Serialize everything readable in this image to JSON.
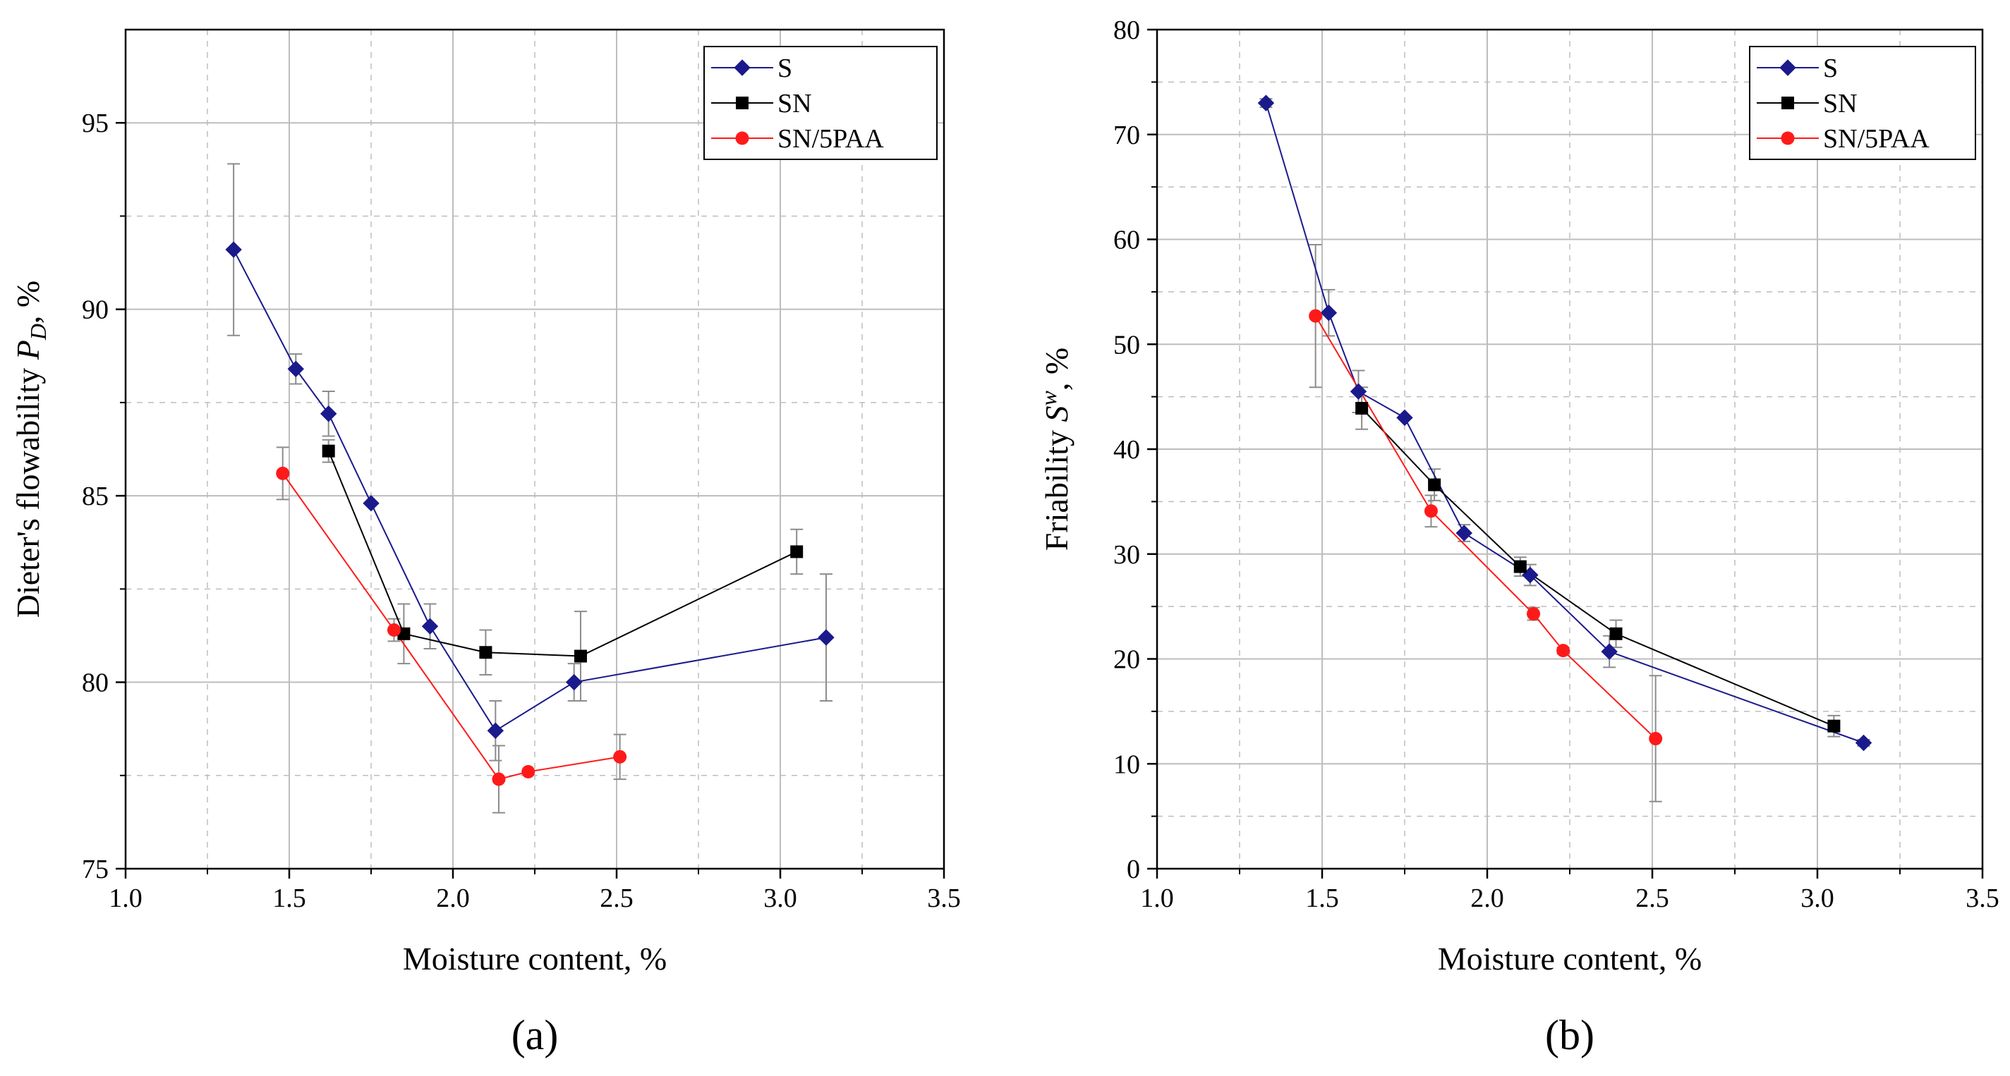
{
  "colors": {
    "S": "#1a1a8c",
    "SN": "#000000",
    "SN/5PAA": "#ff1a1a",
    "grid": "#bdbdbd",
    "errorbar": "#8c8c8c"
  },
  "chart_data": [
    {
      "type": "line",
      "panel_label": "(a)",
      "xlabel": "Moisture content, %",
      "ylabel": "Dieter's flowability P_D, %",
      "ylabel_parts": {
        "prefix": "Dieter's flowability ",
        "symbol": "P",
        "subscript": "D",
        "suffix": ", %"
      },
      "xlim": [
        1.0,
        3.5
      ],
      "ylim": [
        75,
        97.5
      ],
      "xticks": [
        1.0,
        1.5,
        2.0,
        2.5,
        3.0,
        3.5
      ],
      "xtick_labels": [
        "1.0",
        "1.5",
        "2.0",
        "2.5",
        "3.0",
        "3.5"
      ],
      "yticks": [
        75,
        80,
        85,
        90,
        95
      ],
      "ytick_labels": [
        "75",
        "80",
        "85",
        "90",
        "95"
      ],
      "grid": true,
      "legend": "top-right",
      "series": [
        {
          "name": "S",
          "marker": "diamond",
          "x": [
            1.33,
            1.52,
            1.62,
            1.75,
            1.93,
            2.13,
            2.37,
            3.14
          ],
          "y": [
            91.6,
            88.4,
            87.2,
            84.8,
            81.5,
            78.7,
            80.0,
            81.2
          ],
          "err": [
            2.3,
            0.4,
            0.6,
            0,
            0.6,
            0.8,
            0.5,
            1.7
          ]
        },
        {
          "name": "SN",
          "marker": "square",
          "x": [
            1.62,
            1.85,
            2.1,
            2.39,
            3.05
          ],
          "y": [
            86.2,
            81.3,
            80.8,
            80.7,
            83.5
          ],
          "err": [
            0.3,
            0.8,
            0.6,
            1.2,
            0.6
          ]
        },
        {
          "name": "SN/5PAA",
          "marker": "circle",
          "x": [
            1.48,
            1.82,
            2.14,
            2.23,
            2.51
          ],
          "y": [
            85.6,
            81.4,
            77.4,
            77.6,
            78.0
          ],
          "err": [
            0.7,
            0.3,
            0.9,
            0,
            0.6
          ]
        }
      ]
    },
    {
      "type": "line",
      "panel_label": "(b)",
      "xlabel": "Moisture content, %",
      "ylabel": "Friability S^w, %",
      "ylabel_parts": {
        "prefix": "Friability ",
        "symbol": "S",
        "superscript": "w",
        "suffix": ", %"
      },
      "xlim": [
        1.0,
        3.5
      ],
      "ylim": [
        0,
        80
      ],
      "xticks": [
        1.0,
        1.5,
        2.0,
        2.5,
        3.0,
        3.5
      ],
      "xtick_labels": [
        "1.0",
        "1.5",
        "2.0",
        "2.5",
        "3.0",
        "3.5"
      ],
      "yticks": [
        0,
        10,
        20,
        30,
        40,
        50,
        60,
        70,
        80
      ],
      "ytick_labels": [
        "0",
        "10",
        "20",
        "30",
        "40",
        "50",
        "60",
        "70",
        "80"
      ],
      "grid": true,
      "legend": "top-right",
      "series": [
        {
          "name": "S",
          "marker": "diamond",
          "x": [
            1.33,
            1.52,
            1.61,
            1.75,
            1.93,
            2.13,
            2.37,
            3.14
          ],
          "y": [
            73.0,
            53.0,
            45.5,
            43.0,
            32.0,
            28.0,
            20.7,
            12.0
          ],
          "err": [
            0.4,
            2.2,
            2.0,
            0,
            0.8,
            1.0,
            1.5,
            0.3
          ]
        },
        {
          "name": "SN",
          "marker": "square",
          "x": [
            1.62,
            1.84,
            2.1,
            2.39,
            3.05
          ],
          "y": [
            43.9,
            36.6,
            28.8,
            22.4,
            13.6
          ],
          "err": [
            2.0,
            1.5,
            0.9,
            1.3,
            1.0
          ]
        },
        {
          "name": "SN/5PAA",
          "marker": "circle",
          "x": [
            1.48,
            1.83,
            2.14,
            2.23,
            2.51
          ],
          "y": [
            52.7,
            34.1,
            24.3,
            20.8,
            12.4
          ],
          "err": [
            6.8,
            1.5,
            0.6,
            0.3,
            6.0
          ]
        }
      ]
    }
  ]
}
